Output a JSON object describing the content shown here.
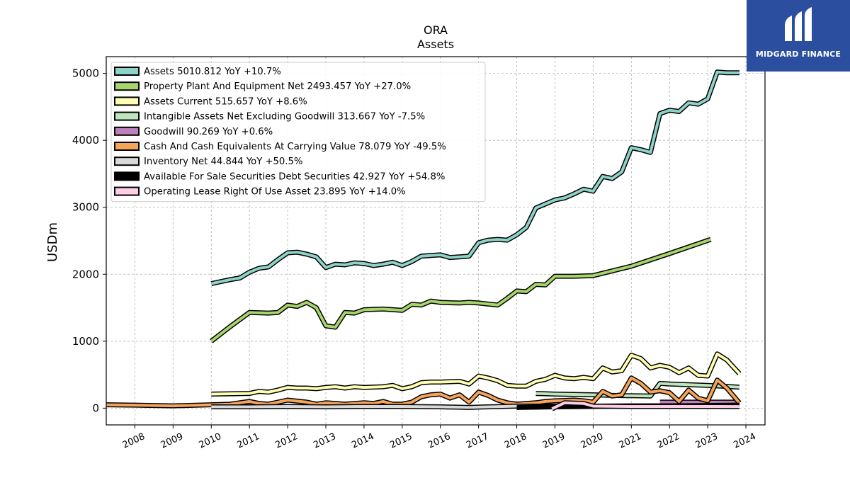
{
  "chart_data": {
    "type": "line",
    "title": "ORA",
    "subtitle": "Assets",
    "xlabel": "",
    "ylabel": "USDm",
    "xlim": [
      2007.25,
      2024.5
    ],
    "ylim": [
      -250,
      5250
    ],
    "x_ticks": [
      "2008",
      "2009",
      "2010",
      "2011",
      "2012",
      "2013",
      "2014",
      "2015",
      "2016",
      "2017",
      "2018",
      "2019",
      "2020",
      "2021",
      "2022",
      "2023",
      "2024"
    ],
    "y_ticks": [
      "0",
      "1000",
      "2000",
      "3000",
      "4000",
      "5000"
    ],
    "grid": true,
    "legend_position": "top-left",
    "series": [
      {
        "name": "Assets",
        "legend": "Assets  5010.812 YoY +10.7%",
        "color": "#8dd3c7",
        "points": [
          [
            2010.0,
            1860
          ],
          [
            2010.5,
            1920
          ],
          [
            2010.75,
            1945
          ],
          [
            2011.0,
            2030
          ],
          [
            2011.25,
            2090
          ],
          [
            2011.5,
            2110
          ],
          [
            2011.75,
            2220
          ],
          [
            2012.0,
            2320
          ],
          [
            2012.25,
            2330
          ],
          [
            2012.5,
            2300
          ],
          [
            2012.75,
            2260
          ],
          [
            2013.0,
            2100
          ],
          [
            2013.25,
            2150
          ],
          [
            2013.5,
            2140
          ],
          [
            2013.75,
            2170
          ],
          [
            2014.0,
            2160
          ],
          [
            2014.25,
            2130
          ],
          [
            2014.5,
            2150
          ],
          [
            2014.75,
            2180
          ],
          [
            2015.0,
            2130
          ],
          [
            2015.25,
            2190
          ],
          [
            2015.5,
            2270
          ],
          [
            2015.75,
            2280
          ],
          [
            2016.0,
            2290
          ],
          [
            2016.25,
            2250
          ],
          [
            2016.5,
            2260
          ],
          [
            2016.75,
            2270
          ],
          [
            2017.0,
            2470
          ],
          [
            2017.25,
            2510
          ],
          [
            2017.5,
            2520
          ],
          [
            2017.75,
            2510
          ],
          [
            2018.0,
            2590
          ],
          [
            2018.25,
            2700
          ],
          [
            2018.5,
            2990
          ],
          [
            2018.75,
            3050
          ],
          [
            2019.0,
            3110
          ],
          [
            2019.25,
            3140
          ],
          [
            2019.5,
            3200
          ],
          [
            2019.75,
            3270
          ],
          [
            2020.0,
            3240
          ],
          [
            2020.25,
            3460
          ],
          [
            2020.5,
            3430
          ],
          [
            2020.75,
            3530
          ],
          [
            2021.0,
            3890
          ],
          [
            2021.25,
            3860
          ],
          [
            2021.5,
            3820
          ],
          [
            2021.75,
            4400
          ],
          [
            2022.0,
            4450
          ],
          [
            2022.25,
            4430
          ],
          [
            2022.5,
            4560
          ],
          [
            2022.75,
            4540
          ],
          [
            2023.0,
            4620
          ],
          [
            2023.25,
            5020
          ],
          [
            2023.5,
            5010
          ],
          [
            2023.83,
            5010
          ]
        ]
      },
      {
        "name": "Property Plant And Equipment Net",
        "legend": "Property Plant And Equipment Net  2493.457 YoY +27.0%",
        "color": "#a6d56b",
        "points": [
          [
            2010.0,
            1000
          ],
          [
            2010.5,
            1220
          ],
          [
            2011.0,
            1430
          ],
          [
            2011.5,
            1420
          ],
          [
            2011.75,
            1430
          ],
          [
            2012.0,
            1540
          ],
          [
            2012.25,
            1520
          ],
          [
            2012.5,
            1580
          ],
          [
            2012.75,
            1500
          ],
          [
            2013.0,
            1230
          ],
          [
            2013.25,
            1210
          ],
          [
            2013.5,
            1430
          ],
          [
            2013.75,
            1420
          ],
          [
            2014.0,
            1470
          ],
          [
            2014.5,
            1480
          ],
          [
            2015.0,
            1460
          ],
          [
            2015.25,
            1550
          ],
          [
            2015.5,
            1540
          ],
          [
            2015.75,
            1600
          ],
          [
            2016.0,
            1580
          ],
          [
            2016.5,
            1570
          ],
          [
            2016.75,
            1580
          ],
          [
            2017.0,
            1570
          ],
          [
            2017.5,
            1540
          ],
          [
            2017.75,
            1640
          ],
          [
            2018.0,
            1750
          ],
          [
            2018.25,
            1740
          ],
          [
            2018.5,
            1850
          ],
          [
            2018.75,
            1840
          ],
          [
            2019.0,
            1970
          ],
          [
            2019.5,
            1970
          ],
          [
            2020.0,
            1980
          ],
          [
            2021.0,
            2120
          ],
          [
            2022.0,
            2310
          ],
          [
            2023.08,
            2520
          ]
        ]
      },
      {
        "name": "Assets Current",
        "legend": "Assets Current  515.657 YoY +8.6%",
        "color": "#ffffb3",
        "points": [
          [
            2010.0,
            210
          ],
          [
            2011.0,
            220
          ],
          [
            2011.25,
            250
          ],
          [
            2011.5,
            240
          ],
          [
            2011.75,
            270
          ],
          [
            2012.0,
            310
          ],
          [
            2012.25,
            300
          ],
          [
            2012.5,
            300
          ],
          [
            2012.75,
            290
          ],
          [
            2013.0,
            310
          ],
          [
            2013.25,
            320
          ],
          [
            2013.5,
            300
          ],
          [
            2013.75,
            320
          ],
          [
            2014.0,
            310
          ],
          [
            2014.5,
            320
          ],
          [
            2014.75,
            340
          ],
          [
            2015.0,
            290
          ],
          [
            2015.25,
            320
          ],
          [
            2015.5,
            380
          ],
          [
            2015.75,
            390
          ],
          [
            2016.0,
            390
          ],
          [
            2016.5,
            400
          ],
          [
            2016.75,
            360
          ],
          [
            2017.0,
            480
          ],
          [
            2017.25,
            450
          ],
          [
            2017.5,
            410
          ],
          [
            2017.75,
            340
          ],
          [
            2018.0,
            330
          ],
          [
            2018.25,
            330
          ],
          [
            2018.5,
            400
          ],
          [
            2018.75,
            430
          ],
          [
            2019.0,
            490
          ],
          [
            2019.25,
            450
          ],
          [
            2019.5,
            440
          ],
          [
            2019.75,
            460
          ],
          [
            2020.0,
            440
          ],
          [
            2020.25,
            600
          ],
          [
            2020.5,
            540
          ],
          [
            2020.75,
            560
          ],
          [
            2021.0,
            790
          ],
          [
            2021.25,
            740
          ],
          [
            2021.5,
            600
          ],
          [
            2021.75,
            640
          ],
          [
            2022.0,
            610
          ],
          [
            2022.25,
            530
          ],
          [
            2022.5,
            600
          ],
          [
            2022.75,
            490
          ],
          [
            2023.0,
            480
          ],
          [
            2023.25,
            810
          ],
          [
            2023.5,
            720
          ],
          [
            2023.83,
            516
          ]
        ]
      },
      {
        "name": "Intangible Assets Net Excluding Goodwill",
        "legend": "Intangible Assets Net Excluding Goodwill  313.667 YoY -7.5%",
        "color": "#bfe5bd",
        "points": [
          [
            2018.5,
            220
          ],
          [
            2019.0,
            210
          ],
          [
            2020.0,
            200
          ],
          [
            2020.5,
            190
          ],
          [
            2021.5,
            180
          ],
          [
            2021.75,
            370
          ],
          [
            2022.0,
            360
          ],
          [
            2023.0,
            340
          ],
          [
            2023.83,
            314
          ]
        ]
      },
      {
        "name": "Goodwill",
        "legend": "Goodwill  90.269 YoY +0.6%",
        "color": "#bc80bd",
        "points": [
          [
            2021.75,
            90
          ],
          [
            2022.5,
            90
          ],
          [
            2023.0,
            90
          ],
          [
            2023.83,
            90
          ]
        ]
      },
      {
        "name": "Cash And Cash Equivalents At Carrying Value",
        "legend": "Cash And Cash Equivalents At Carrying Value  78.079 YoY -49.5%",
        "color": "#f6a45a",
        "points": [
          [
            2007.25,
            50
          ],
          [
            2008.0,
            45
          ],
          [
            2009.0,
            35
          ],
          [
            2010.0,
            50
          ],
          [
            2010.5,
            60
          ],
          [
            2011.0,
            100
          ],
          [
            2011.25,
            70
          ],
          [
            2011.5,
            60
          ],
          [
            2012.0,
            120
          ],
          [
            2012.5,
            90
          ],
          [
            2012.75,
            60
          ],
          [
            2013.0,
            80
          ],
          [
            2013.5,
            60
          ],
          [
            2014.0,
            80
          ],
          [
            2014.25,
            70
          ],
          [
            2014.5,
            100
          ],
          [
            2014.75,
            60
          ],
          [
            2015.0,
            60
          ],
          [
            2015.25,
            90
          ],
          [
            2015.5,
            170
          ],
          [
            2015.75,
            200
          ],
          [
            2016.0,
            210
          ],
          [
            2016.25,
            150
          ],
          [
            2016.5,
            200
          ],
          [
            2016.75,
            90
          ],
          [
            2017.0,
            240
          ],
          [
            2017.25,
            190
          ],
          [
            2017.5,
            120
          ],
          [
            2017.75,
            80
          ],
          [
            2018.0,
            60
          ],
          [
            2018.5,
            80
          ],
          [
            2018.75,
            100
          ],
          [
            2019.0,
            110
          ],
          [
            2019.5,
            120
          ],
          [
            2019.75,
            110
          ],
          [
            2020.0,
            90
          ],
          [
            2020.25,
            250
          ],
          [
            2020.5,
            180
          ],
          [
            2020.75,
            200
          ],
          [
            2021.0,
            450
          ],
          [
            2021.25,
            370
          ],
          [
            2021.5,
            240
          ],
          [
            2021.75,
            260
          ],
          [
            2022.0,
            230
          ],
          [
            2022.25,
            100
          ],
          [
            2022.5,
            270
          ],
          [
            2022.75,
            150
          ],
          [
            2023.0,
            110
          ],
          [
            2023.25,
            420
          ],
          [
            2023.5,
            300
          ],
          [
            2023.83,
            78
          ]
        ]
      },
      {
        "name": "Inventory Net",
        "legend": "Inventory Net  44.844 YoY +50.5%",
        "color": "#d9d9d9",
        "points": [
          [
            2010.0,
            20
          ],
          [
            2011.0,
            20
          ],
          [
            2012.0,
            25
          ],
          [
            2013.0,
            20
          ],
          [
            2014.0,
            25
          ],
          [
            2015.0,
            25
          ],
          [
            2016.0,
            20
          ],
          [
            2016.75,
            10
          ],
          [
            2017.0,
            15
          ],
          [
            2018.0,
            30
          ],
          [
            2019.0,
            30
          ],
          [
            2020.0,
            30
          ],
          [
            2021.0,
            35
          ],
          [
            2022.0,
            35
          ],
          [
            2023.0,
            40
          ],
          [
            2023.83,
            45
          ]
        ]
      },
      {
        "name": "Available For Sale Securities Debt Securities",
        "legend": "Available For Sale Securities Debt Securities  42.927 YoY +54.8%",
        "color": "#000000",
        "points": [
          [
            2018.0,
            10
          ],
          [
            2019.0,
            20
          ],
          [
            2020.0,
            25
          ],
          [
            2021.0,
            30
          ],
          [
            2022.0,
            35
          ],
          [
            2023.0,
            30
          ],
          [
            2023.83,
            43
          ]
        ]
      },
      {
        "name": "Operating Lease Right Of Use Asset",
        "legend": "Operating Lease Right Of Use Asset  23.895 YoY +14.0%",
        "color": "#fccde5",
        "points": [
          [
            2018.92,
            -10
          ],
          [
            2019.25,
            80
          ],
          [
            2019.75,
            70
          ],
          [
            2020.0,
            30
          ],
          [
            2021.0,
            25
          ],
          [
            2022.0,
            25
          ],
          [
            2023.0,
            25
          ],
          [
            2023.83,
            24
          ]
        ]
      }
    ]
  },
  "branding": {
    "logo_text": "MIDGARD FINANCE",
    "logo_color": "#2b4f9e"
  }
}
